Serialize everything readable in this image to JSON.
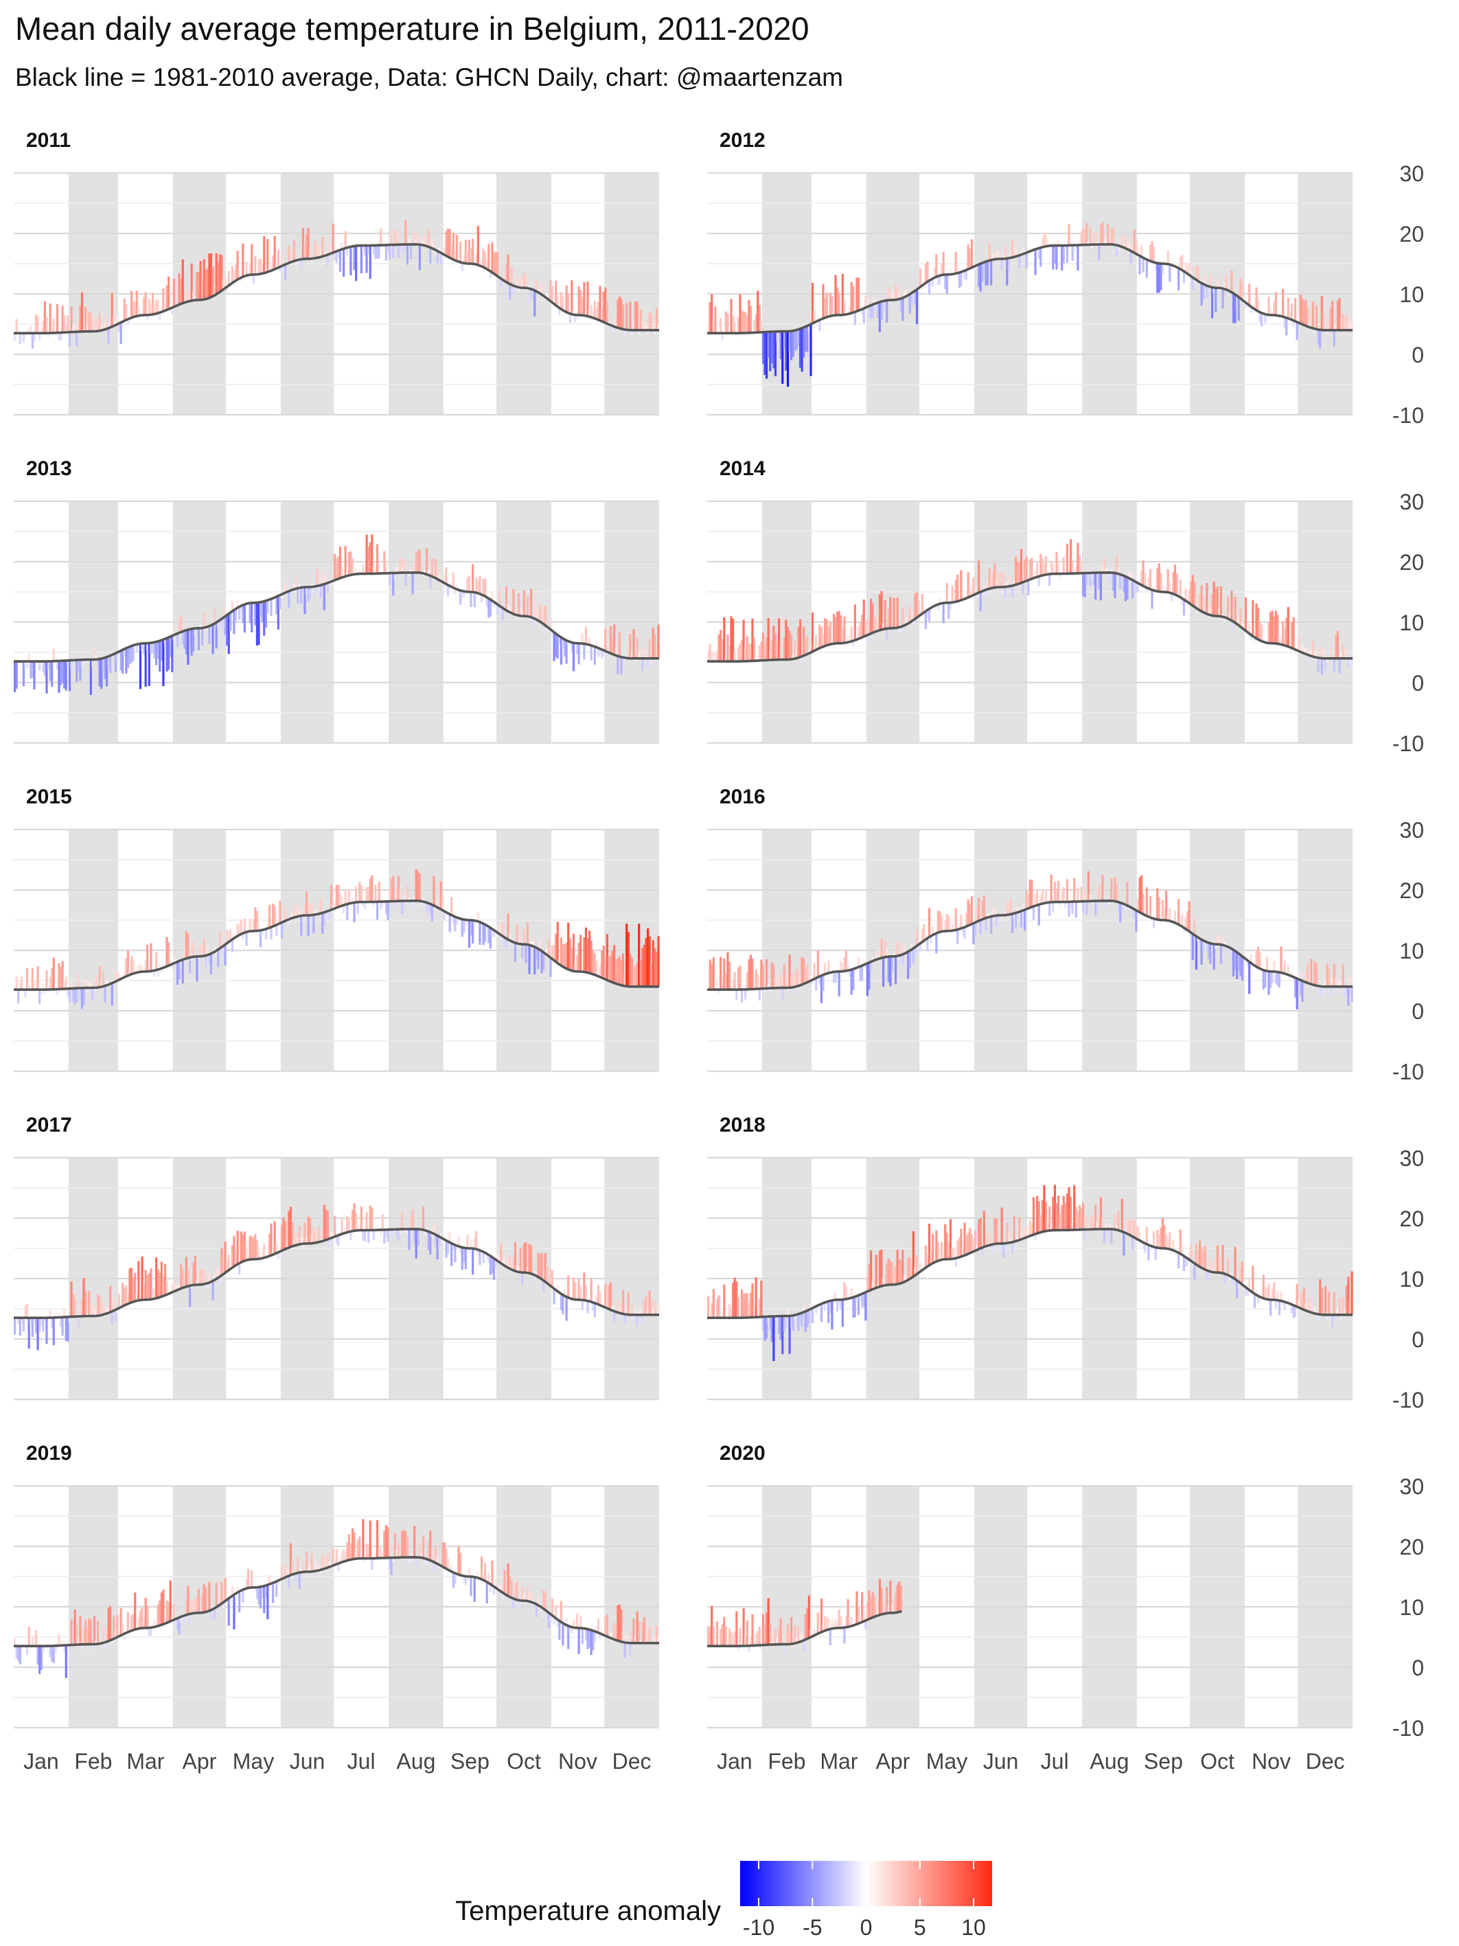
{
  "chart_data": {
    "type": "bar",
    "title": "Mean daily average temperature in Belgium, 2011-2020",
    "subtitle": "Black line = 1981-2010 average, Data: GHCN Daily, chart: @maartenzam",
    "months": [
      "Jan",
      "Feb",
      "Mar",
      "Apr",
      "May",
      "Jun",
      "Jul",
      "Aug",
      "Sep",
      "Oct",
      "Nov",
      "Dec"
    ],
    "ylim": [
      -10,
      30
    ],
    "yticks": [
      30,
      20,
      10,
      0,
      -10
    ],
    "baseline_label": "1981-2010 average",
    "baseline_monthly": [
      3.5,
      3.8,
      6.5,
      9.0,
      13.2,
      15.8,
      18.0,
      18.2,
      15.0,
      11.0,
      6.5,
      4.0
    ],
    "legend": {
      "title": "Temperature anomaly",
      "ticks": [
        -10,
        -5,
        0,
        5,
        10
      ],
      "colors": {
        "low": "#0000ff",
        "mid": "#ffffff",
        "high": "#ff2a12"
      }
    },
    "panels": [
      {
        "year": "2011",
        "days": 365,
        "monthly_anomaly": [
          1.5,
          2.0,
          1.0,
          4.5,
          2.5,
          1.5,
          -1.5,
          -0.5,
          2.0,
          0.5,
          2.5,
          2.0
        ]
      },
      {
        "year": "2012",
        "days": 366,
        "monthly_anomaly": [
          2.5,
          -5.0,
          2.5,
          -1.0,
          1.0,
          -1.0,
          -0.5,
          1.5,
          -0.5,
          -0.5,
          0.5,
          1.5
        ]
      },
      {
        "year": "2013",
        "days": 365,
        "monthly_anomaly": [
          -2.0,
          -2.0,
          -4.0,
          -1.5,
          -2.5,
          -1.0,
          2.0,
          0.5,
          0.0,
          2.0,
          -1.5,
          1.5
        ]
      },
      {
        "year": "2014",
        "days": 365,
        "monthly_anomaly": [
          3.5,
          3.5,
          3.0,
          3.0,
          1.0,
          1.5,
          1.0,
          -1.5,
          1.5,
          2.5,
          2.5,
          0.5
        ]
      },
      {
        "year": "2015",
        "days": 365,
        "monthly_anomaly": [
          1.0,
          -0.5,
          1.0,
          0.0,
          0.0,
          0.0,
          0.5,
          1.0,
          -1.0,
          0.0,
          4.0,
          6.0
        ]
      },
      {
        "year": "2016",
        "days": 366,
        "monthly_anomaly": [
          2.0,
          1.5,
          -0.5,
          -1.5,
          1.0,
          0.5,
          0.5,
          1.0,
          3.0,
          -1.0,
          -0.5,
          1.0
        ]
      },
      {
        "year": "2017",
        "days": 365,
        "monthly_anomaly": [
          -2.0,
          2.5,
          3.0,
          0.5,
          2.0,
          3.0,
          0.5,
          -0.5,
          -1.0,
          2.0,
          0.0,
          1.0
        ]
      },
      {
        "year": "2018",
        "days": 365,
        "monthly_anomaly": [
          3.0,
          -3.0,
          -1.5,
          3.0,
          3.0,
          2.0,
          3.5,
          1.0,
          1.0,
          1.5,
          0.5,
          2.5
        ]
      },
      {
        "year": "2019",
        "days": 365,
        "monthly_anomaly": [
          -0.5,
          2.5,
          2.0,
          1.0,
          -1.0,
          1.0,
          2.5,
          1.5,
          0.5,
          1.0,
          -0.5,
          2.0
        ]
      },
      {
        "year": "2020",
        "days": 110,
        "monthly_anomaly": [
          3.0,
          3.0,
          1.5,
          3.0
        ]
      }
    ]
  }
}
